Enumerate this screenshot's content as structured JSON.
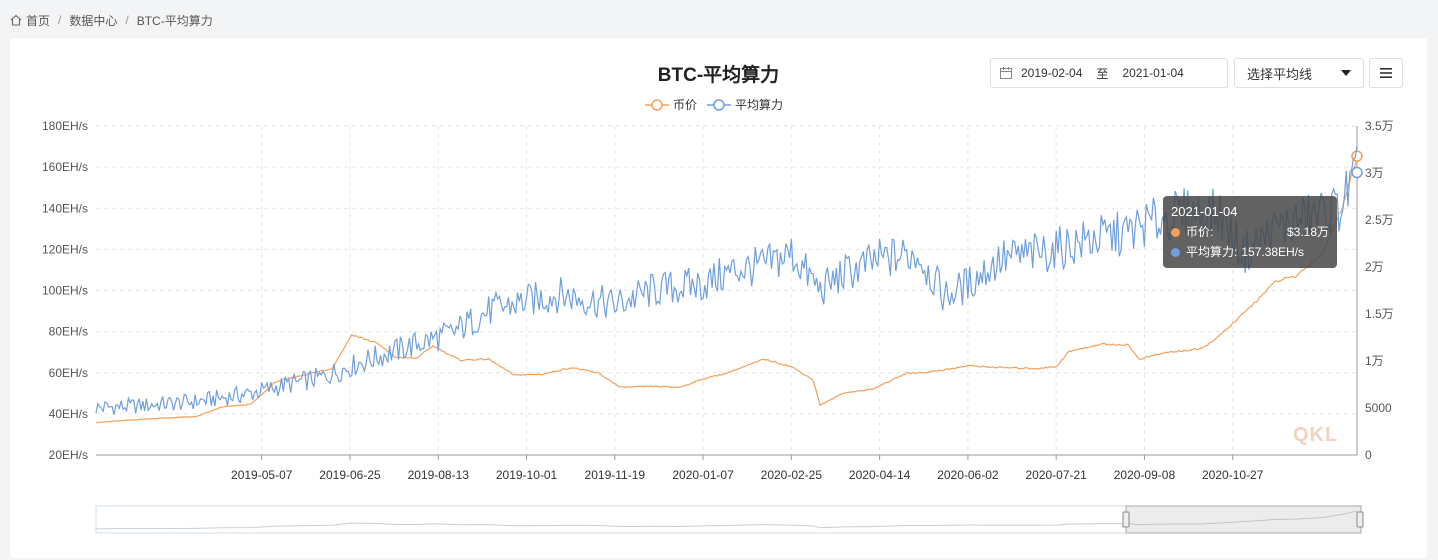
{
  "breadcrumb": {
    "home": "首页",
    "data_center": "数据中心",
    "current": "BTC-平均算力"
  },
  "toolbar": {
    "start_date": "2019-02-04",
    "to_label": "至",
    "end_date": "2021-01-04",
    "select_label": "选择平均线"
  },
  "tooltip": {
    "date": "2021-01-04",
    "price_label": "币价:",
    "price_value": "$3.18万",
    "hash_label": "平均算力:",
    "hash_value": "157.38EH/s"
  },
  "watermark": "QKL",
  "chart_data": {
    "type": "line",
    "title": "BTC-平均算力",
    "legend": [
      "币价",
      "平均算力"
    ],
    "legend_position": "top-center",
    "grid": true,
    "colors": {
      "price": "#f5a05a",
      "hashrate": "#6f9fdc"
    },
    "x_ticks": [
      "2019-05-07",
      "2019-06-25",
      "2019-08-13",
      "2019-10-01",
      "2019-11-19",
      "2020-01-07",
      "2020-02-25",
      "2020-04-14",
      "2020-06-02",
      "2020-07-21",
      "2020-09-08",
      "2020-10-27"
    ],
    "y_left_ticks": [
      "20EH/s",
      "40EH/s",
      "60EH/s",
      "80EH/s",
      "100EH/s",
      "120EH/s",
      "140EH/s",
      "160EH/s",
      "180EH/s"
    ],
    "y_right_ticks": [
      "0",
      "5000",
      "1万",
      "1.5万",
      "2万",
      "2.5万",
      "3万",
      "3.5万"
    ],
    "y_left_range": [
      20,
      180
    ],
    "y_right_range": [
      0,
      35000
    ],
    "x_range": [
      "2019-02-04",
      "2021-01-04"
    ],
    "series": [
      {
        "name": "币价",
        "axis": "right",
        "points": [
          [
            "2019-02-04",
            3450
          ],
          [
            "2019-03-01",
            3800
          ],
          [
            "2019-04-01",
            4100
          ],
          [
            "2019-04-15",
            5100
          ],
          [
            "2019-05-01",
            5400
          ],
          [
            "2019-05-15",
            7800
          ],
          [
            "2019-06-01",
            8600
          ],
          [
            "2019-06-15",
            9200
          ],
          [
            "2019-06-26",
            12800
          ],
          [
            "2019-07-10",
            11900
          ],
          [
            "2019-07-20",
            10400
          ],
          [
            "2019-08-01",
            10300
          ],
          [
            "2019-08-10",
            11600
          ],
          [
            "2019-08-25",
            10100
          ],
          [
            "2019-09-10",
            10200
          ],
          [
            "2019-09-24",
            8500
          ],
          [
            "2019-10-10",
            8600
          ],
          [
            "2019-10-26",
            9300
          ],
          [
            "2019-11-10",
            8700
          ],
          [
            "2019-11-22",
            7200
          ],
          [
            "2019-12-10",
            7300
          ],
          [
            "2019-12-25",
            7200
          ],
          [
            "2020-01-07",
            8100
          ],
          [
            "2020-01-20",
            8700
          ],
          [
            "2020-02-10",
            10200
          ],
          [
            "2020-02-25",
            9400
          ],
          [
            "2020-03-08",
            8000
          ],
          [
            "2020-03-12",
            5300
          ],
          [
            "2020-03-25",
            6600
          ],
          [
            "2020-04-10",
            7000
          ],
          [
            "2020-04-29",
            8700
          ],
          [
            "2020-05-10",
            8800
          ],
          [
            "2020-05-25",
            9200
          ],
          [
            "2020-06-02",
            9500
          ],
          [
            "2020-06-20",
            9300
          ],
          [
            "2020-07-10",
            9200
          ],
          [
            "2020-07-21",
            9400
          ],
          [
            "2020-07-28",
            11000
          ],
          [
            "2020-08-15",
            11800
          ],
          [
            "2020-08-30",
            11700
          ],
          [
            "2020-09-05",
            10200
          ],
          [
            "2020-09-20",
            10900
          ],
          [
            "2020-10-10",
            11300
          ],
          [
            "2020-10-21",
            12900
          ],
          [
            "2020-11-05",
            15600
          ],
          [
            "2020-11-20",
            18500
          ],
          [
            "2020-12-01",
            19000
          ],
          [
            "2020-12-16",
            21500
          ],
          [
            "2020-12-27",
            26500
          ],
          [
            "2021-01-04",
            31800
          ]
        ]
      },
      {
        "name": "平均算力",
        "axis": "left",
        "points": [
          [
            "2019-02-04",
            43
          ],
          [
            "2019-03-01",
            44
          ],
          [
            "2019-04-01",
            46
          ],
          [
            "2019-05-01",
            50
          ],
          [
            "2019-05-20",
            54
          ],
          [
            "2019-06-10",
            58
          ],
          [
            "2019-07-01",
            65
          ],
          [
            "2019-08-01",
            74
          ],
          [
            "2019-08-20",
            79
          ],
          [
            "2019-09-10",
            90
          ],
          [
            "2019-10-01",
            95
          ],
          [
            "2019-10-20",
            98
          ],
          [
            "2019-11-19",
            93
          ],
          [
            "2019-12-10",
            100
          ],
          [
            "2020-01-07",
            103
          ],
          [
            "2020-01-25",
            110
          ],
          [
            "2020-02-10",
            112
          ],
          [
            "2020-02-25",
            118
          ],
          [
            "2020-03-12",
            100
          ],
          [
            "2020-03-25",
            108
          ],
          [
            "2020-04-14",
            115
          ],
          [
            "2020-05-05",
            118
          ],
          [
            "2020-05-20",
            97
          ],
          [
            "2020-06-02",
            103
          ],
          [
            "2020-06-20",
            115
          ],
          [
            "2020-07-10",
            118
          ],
          [
            "2020-07-21",
            120
          ],
          [
            "2020-08-10",
            125
          ],
          [
            "2020-08-30",
            128
          ],
          [
            "2020-09-08",
            132
          ],
          [
            "2020-10-01",
            138
          ],
          [
            "2020-10-20",
            137
          ],
          [
            "2020-11-02",
            118
          ],
          [
            "2020-11-20",
            130
          ],
          [
            "2020-12-10",
            136
          ],
          [
            "2020-12-25",
            140
          ],
          [
            "2021-01-04",
            157.38
          ]
        ]
      }
    ]
  }
}
